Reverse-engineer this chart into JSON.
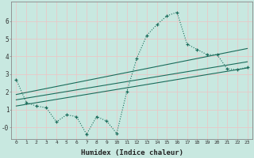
{
  "xlabel": "Humidex (Indice chaleur)",
  "bg_color": "#c8e8e0",
  "line_color": "#1a6b5a",
  "grid_color": "#e8c8c8",
  "x_data": [
    0,
    1,
    2,
    3,
    4,
    5,
    6,
    7,
    8,
    9,
    10,
    11,
    12,
    13,
    14,
    15,
    16,
    17,
    18,
    19,
    20,
    21,
    22,
    23
  ],
  "y_data": [
    2.7,
    1.4,
    1.2,
    1.1,
    0.3,
    0.7,
    0.6,
    -0.4,
    0.6,
    0.35,
    -0.35,
    2.0,
    3.9,
    5.2,
    5.8,
    6.3,
    6.5,
    4.7,
    4.4,
    4.1,
    4.1,
    3.3,
    3.25,
    3.4
  ],
  "trend1_x": [
    0,
    23
  ],
  "trend1_y": [
    1.2,
    3.35
  ],
  "trend2_x": [
    0,
    23
  ],
  "trend2_y": [
    1.55,
    3.7
  ],
  "trend3_x": [
    0,
    23
  ],
  "trend3_y": [
    1.85,
    4.45
  ],
  "ylim": [
    -0.65,
    7.1
  ],
  "xlim": [
    -0.5,
    23.5
  ],
  "yticks": [
    0,
    1,
    2,
    3,
    4,
    5,
    6
  ],
  "ytick_labels": [
    "-0",
    "1",
    "2",
    "3",
    "4",
    "5",
    "6"
  ],
  "xticks": [
    0,
    1,
    2,
    3,
    4,
    5,
    6,
    7,
    8,
    9,
    10,
    11,
    12,
    13,
    14,
    15,
    16,
    17,
    18,
    19,
    20,
    21,
    22,
    23
  ]
}
